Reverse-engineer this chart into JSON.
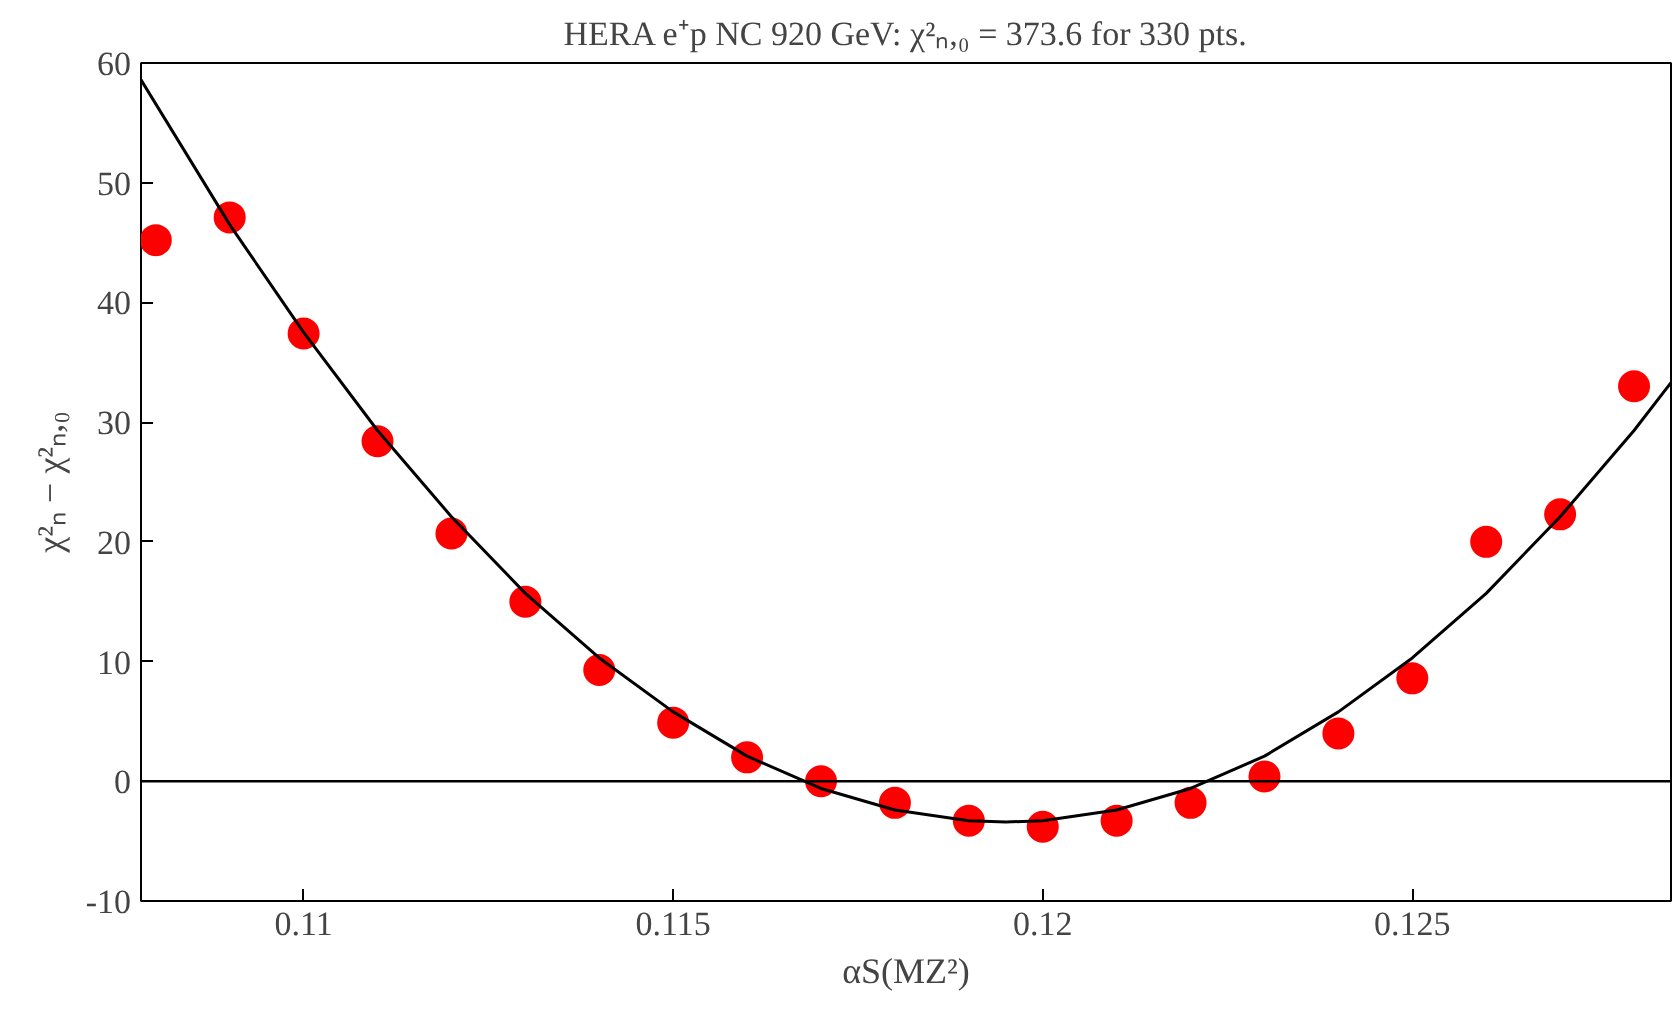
{
  "chart_data": {
    "type": "scatter",
    "title": "HERA e⁺p NC 920 GeV: χ²ₙ,₀ = 373.6 for 330 pts.",
    "xlabel": "αS(MZ²)",
    "ylabel": "χ²ₙ − χ²ₙ,₀",
    "x": [
      0.108,
      0.109,
      0.11,
      0.111,
      0.112,
      0.113,
      0.114,
      0.115,
      0.116,
      0.117,
      0.118,
      0.119,
      0.12,
      0.121,
      0.122,
      0.123,
      0.124,
      0.125,
      0.126,
      0.127,
      0.128
    ],
    "series": [
      {
        "color": "#ff0000",
        "marker": "circle",
        "values": [
          45.2,
          47.1,
          37.4,
          28.4,
          20.7,
          15.0,
          9.3,
          4.9,
          2.0,
          0.0,
          -1.8,
          -3.3,
          -3.8,
          -3.3,
          -1.8,
          0.4,
          4.0,
          8.6,
          20.0,
          22.3,
          33.0
        ]
      },
      {
        "type": "line",
        "color": "#000000",
        "line_style": "solid",
        "x": [
          0.1078,
          0.109,
          0.11,
          0.111,
          0.112,
          0.113,
          0.114,
          0.115,
          0.116,
          0.117,
          0.118,
          0.119,
          0.1195,
          0.12,
          0.121,
          0.122,
          0.123,
          0.124,
          0.125,
          0.126,
          0.127,
          0.128,
          0.1285
        ],
        "values": [
          58.6,
          46.5,
          37.5,
          29.3,
          22.1,
          15.7,
          10.3,
          5.8,
          2.1,
          -0.6,
          -2.4,
          -3.3,
          -3.4,
          -3.3,
          -2.4,
          -0.6,
          2.1,
          5.8,
          10.3,
          15.7,
          22.1,
          29.3,
          33.3
        ]
      }
    ],
    "xlim": [
      0.1078,
      0.1285
    ],
    "ylim": [
      -10,
      60
    ],
    "xticks": [
      0.11,
      0.115,
      0.12,
      0.125
    ],
    "yticks": [
      -10,
      0,
      10,
      20,
      30,
      40,
      50,
      60
    ],
    "ref_lines": [
      {
        "axis": "y",
        "value": 0,
        "color": "#000000"
      }
    ],
    "grid": false
  }
}
